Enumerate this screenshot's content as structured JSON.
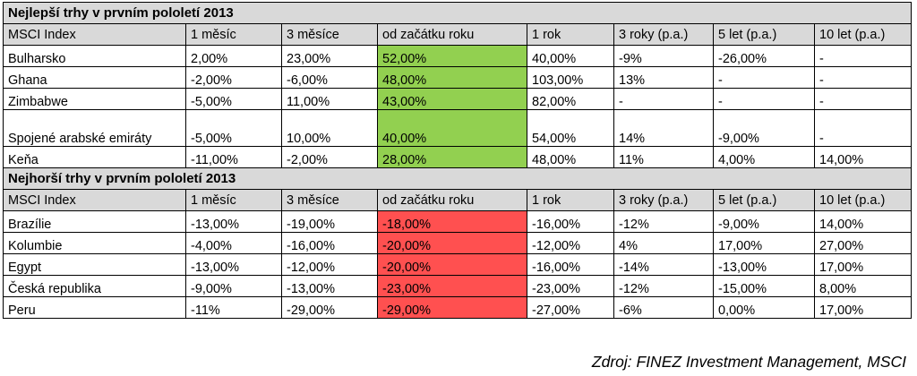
{
  "chart_data": {
    "type": "table",
    "columns": [
      "MSCI Index",
      "1 měsíc",
      "3 měsíce",
      "od začátku roku",
      "1 rok",
      "3 roky (p.a.)",
      "5 let (p.a.)",
      "10 let (p.a.)"
    ],
    "sections": [
      {
        "title": "Nejlepší trhy v prvním pololetí 2013",
        "highlight_color": "#92d050",
        "rows": [
          [
            "Bulharsko",
            "2,00%",
            "23,00%",
            "52,00%",
            "40,00%",
            "-9%",
            "-26,00%",
            "-"
          ],
          [
            "Ghana",
            "-2,00%",
            "-6,00%",
            "48,00%",
            "103,00%",
            "13%",
            "-",
            "-"
          ],
          [
            "Zimbabwe",
            "-5,00%",
            "11,00%",
            "43,00%",
            "82,00%",
            "-",
            "-",
            "-"
          ],
          [
            "Spojené arabské emiráty",
            "-5,00%",
            "10,00%",
            "40,00%",
            "54,00%",
            "14%",
            "-9,00%",
            "-"
          ],
          [
            "Keňa",
            "-11,00%",
            "-2,00%",
            "28,00%",
            "48,00%",
            "11%",
            "4,00%",
            "14,00%"
          ]
        ]
      },
      {
        "title": "Nejhorší trhy v prvním pololetí 2013",
        "highlight_color": "#ff5050",
        "rows": [
          [
            "Brazílie",
            "-13,00%",
            "-19,00%",
            "-18,00%",
            "-16,00%",
            "-12%",
            "-9,00%",
            "14,00%"
          ],
          [
            "Kolumbie",
            "-4,00%",
            "-16,00%",
            "-20,00%",
            "-12,00%",
            "4%",
            "17,00%",
            "27,00%"
          ],
          [
            "Egypt",
            "-13,00%",
            "-12,00%",
            "-20,00%",
            "-16,00%",
            "-14%",
            "-13,00%",
            "17,00%"
          ],
          [
            "Česká republika",
            "-9,00%",
            "-13,00%",
            "-23,00%",
            "-23,00%",
            "-12%",
            "-15,00%",
            "8,00%"
          ],
          [
            "Peru",
            "-11%",
            "-29,00%",
            "-29,00%",
            "-27,00%",
            "-6%",
            "0,00%",
            "17,00%"
          ]
        ]
      }
    ],
    "highlighted_column": 3,
    "source": "Zdroj: FINEZ Investment Management, MSCI"
  }
}
